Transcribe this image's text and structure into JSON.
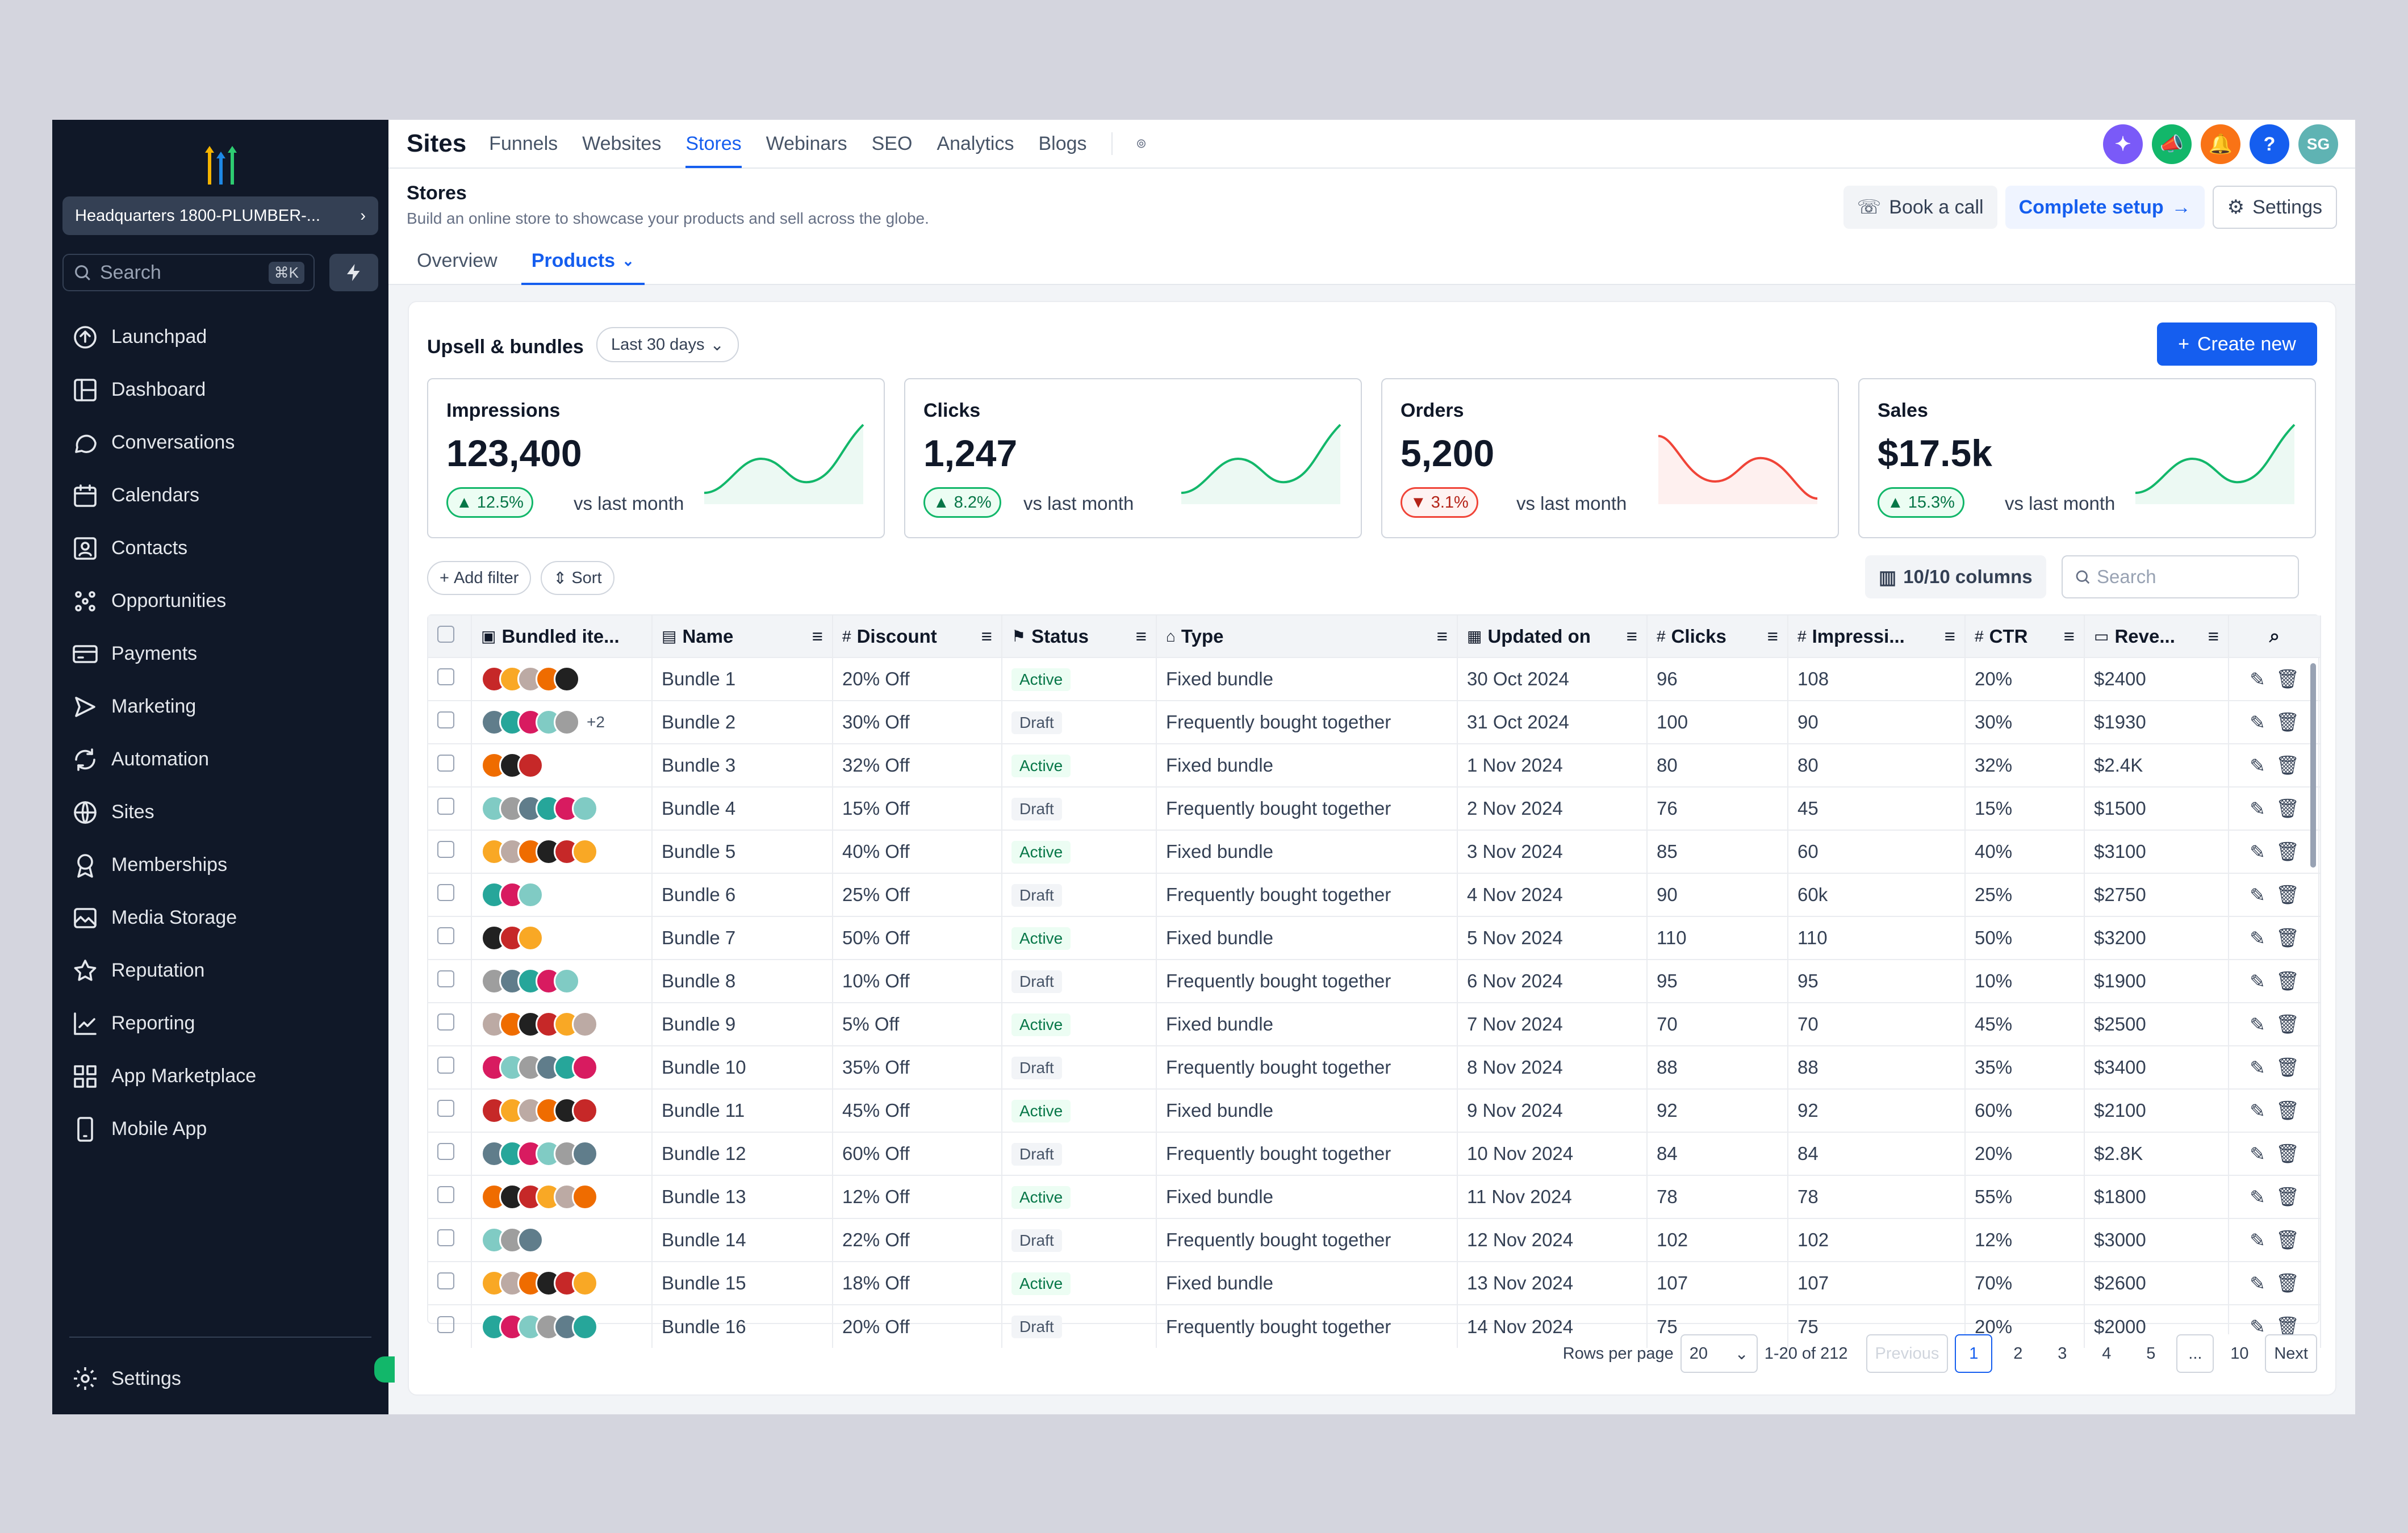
{
  "sidebar": {
    "location": "Headquarters 1800-PLUMBER-...",
    "search_placeholder": "Search",
    "search_shortcut": "⌘K",
    "items": [
      {
        "label": "Launchpad",
        "icon": "launchpad-icon"
      },
      {
        "label": "Dashboard",
        "icon": "dashboard-icon"
      },
      {
        "label": "Conversations",
        "icon": "chat-icon"
      },
      {
        "label": "Calendars",
        "icon": "calendar-icon"
      },
      {
        "label": "Contacts",
        "icon": "contact-icon"
      },
      {
        "label": "Opportunities",
        "icon": "opportunities-icon"
      },
      {
        "label": "Payments",
        "icon": "payments-icon"
      },
      {
        "label": "Marketing",
        "icon": "marketing-icon"
      },
      {
        "label": "Automation",
        "icon": "automation-icon"
      },
      {
        "label": "Sites",
        "icon": "sites-icon"
      },
      {
        "label": "Memberships",
        "icon": "memberships-icon"
      },
      {
        "label": "Media Storage",
        "icon": "media-icon"
      },
      {
        "label": "Reputation",
        "icon": "star-icon"
      },
      {
        "label": "Reporting",
        "icon": "reporting-icon"
      },
      {
        "label": "App Marketplace",
        "icon": "apps-icon"
      },
      {
        "label": "Mobile App",
        "icon": "mobile-icon"
      }
    ],
    "settings_label": "Settings"
  },
  "topbar": {
    "title": "Sites",
    "tabs": [
      "Funnels",
      "Websites",
      "Stores",
      "Webinars",
      "SEO",
      "Analytics",
      "Blogs"
    ],
    "active_tab": "Stores",
    "avatar_initials": "SG",
    "help_label": "?"
  },
  "header": {
    "title": "Stores",
    "subtitle": "Build an online store to showcase your products and sell across the globe.",
    "tabs": [
      "Overview",
      "Products"
    ],
    "book_call": "Book a call",
    "complete_setup": "Complete setup",
    "settings": "Settings"
  },
  "card": {
    "title": "Upsell & bundles",
    "date_range": "Last 30 days",
    "create_label": "Create new",
    "stats": [
      {
        "label": "Impressions",
        "value": "123,400",
        "change": "12.5%",
        "dir": "up",
        "vs": "vs last month"
      },
      {
        "label": "Clicks",
        "value": "1,247",
        "change": "8.2%",
        "dir": "up",
        "vs": "vs last month"
      },
      {
        "label": "Orders",
        "value": "5,200",
        "change": "3.1%",
        "dir": "down",
        "vs": "vs last month"
      },
      {
        "label": "Sales",
        "value": "$17.5k",
        "change": "15.3%",
        "dir": "up",
        "vs": "vs last month"
      }
    ],
    "add_filter": "Add filter",
    "sort": "Sort",
    "columns_label": "10/10 columns",
    "search_placeholder": "Search"
  },
  "table": {
    "headers": [
      "Bundled ite...",
      "Name",
      "Discount",
      "Status",
      "Type",
      "Updated on",
      "Clicks",
      "Impressi...",
      "CTR",
      "Reve..."
    ],
    "rows": [
      {
        "name": "Bundle 1",
        "discount": "20% Off",
        "status": "Active",
        "type": "Fixed bundle",
        "updated": "30 Oct 2024",
        "clicks": "96",
        "impr": "108",
        "ctr": "20%",
        "rev": "$2400",
        "more": ""
      },
      {
        "name": "Bundle 2",
        "discount": "30% Off",
        "status": "Draft",
        "type": "Frequently bought together",
        "updated": "31 Oct 2024",
        "clicks": "100",
        "impr": "90",
        "ctr": "30%",
        "rev": "$1930",
        "more": "+2"
      },
      {
        "name": "Bundle 3",
        "discount": "32% Off",
        "status": "Active",
        "type": "Fixed bundle",
        "updated": "1 Nov 2024",
        "clicks": "80",
        "impr": "80",
        "ctr": "32%",
        "rev": "$2.4K",
        "more": ""
      },
      {
        "name": "Bundle 4",
        "discount": "15% Off",
        "status": "Draft",
        "type": "Frequently bought together",
        "updated": "2 Nov 2024",
        "clicks": "76",
        "impr": "45",
        "ctr": "15%",
        "rev": "$1500",
        "more": ""
      },
      {
        "name": "Bundle 5",
        "discount": "40% Off",
        "status": "Active",
        "type": "Fixed bundle",
        "updated": "3 Nov 2024",
        "clicks": "85",
        "impr": "60",
        "ctr": "40%",
        "rev": "$3100",
        "more": ""
      },
      {
        "name": "Bundle 6",
        "discount": "25% Off",
        "status": "Draft",
        "type": "Frequently bought together",
        "updated": "4 Nov 2024",
        "clicks": "90",
        "impr": "60k",
        "ctr": "25%",
        "rev": "$2750",
        "more": ""
      },
      {
        "name": "Bundle 7",
        "discount": "50% Off",
        "status": "Active",
        "type": "Fixed bundle",
        "updated": "5 Nov 2024",
        "clicks": "110",
        "impr": "110",
        "ctr": "50%",
        "rev": "$3200",
        "more": ""
      },
      {
        "name": "Bundle 8",
        "discount": "10% Off",
        "status": "Draft",
        "type": "Frequently bought together",
        "updated": "6 Nov 2024",
        "clicks": "95",
        "impr": "95",
        "ctr": "10%",
        "rev": "$1900",
        "more": ""
      },
      {
        "name": "Bundle 9",
        "discount": "5% Off",
        "status": "Active",
        "type": "Fixed bundle",
        "updated": "7 Nov 2024",
        "clicks": "70",
        "impr": "70",
        "ctr": "45%",
        "rev": "$2500",
        "more": ""
      },
      {
        "name": "Bundle 10",
        "discount": "35% Off",
        "status": "Draft",
        "type": "Frequently bought together",
        "updated": "8 Nov 2024",
        "clicks": "88",
        "impr": "88",
        "ctr": "35%",
        "rev": "$3400",
        "more": ""
      },
      {
        "name": "Bundle 11",
        "discount": "45% Off",
        "status": "Active",
        "type": "Fixed bundle",
        "updated": "9 Nov 2024",
        "clicks": "92",
        "impr": "92",
        "ctr": "60%",
        "rev": "$2100",
        "more": ""
      },
      {
        "name": "Bundle 12",
        "discount": "60% Off",
        "status": "Draft",
        "type": "Frequently bought together",
        "updated": "10 Nov 2024",
        "clicks": "84",
        "impr": "84",
        "ctr": "20%",
        "rev": "$2.8K",
        "more": ""
      },
      {
        "name": "Bundle 13",
        "discount": "12% Off",
        "status": "Active",
        "type": "Fixed bundle",
        "updated": "11 Nov 2024",
        "clicks": "78",
        "impr": "78",
        "ctr": "55%",
        "rev": "$1800",
        "more": ""
      },
      {
        "name": "Bundle 14",
        "discount": "22% Off",
        "status": "Draft",
        "type": "Frequently bought together",
        "updated": "12 Nov 2024",
        "clicks": "102",
        "impr": "102",
        "ctr": "12%",
        "rev": "$3000",
        "more": ""
      },
      {
        "name": "Bundle 15",
        "discount": "18% Off",
        "status": "Active",
        "type": "Fixed bundle",
        "updated": "13 Nov 2024",
        "clicks": "107",
        "impr": "107",
        "ctr": "70%",
        "rev": "$2600",
        "more": ""
      },
      {
        "name": "Bundle 16",
        "discount": "20% Off",
        "status": "Draft",
        "type": "Frequently bought together",
        "updated": "14 Nov 2024",
        "clicks": "75",
        "impr": "75",
        "ctr": "20%",
        "rev": "$2000",
        "more": ""
      }
    ]
  },
  "pager": {
    "rows_label": "Rows per page",
    "rows_value": "20",
    "range": "1-20 of 212",
    "previous": "Previous",
    "pages": [
      "1",
      "2",
      "3",
      "4",
      "5",
      "...",
      "10"
    ],
    "next": "Next"
  },
  "colors": {
    "accent": "#155eef",
    "sidebar": "#101828",
    "up": "#12b76a",
    "down": "#f04438"
  }
}
